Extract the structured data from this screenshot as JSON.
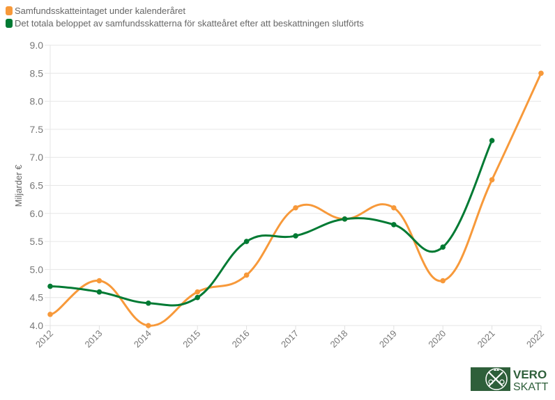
{
  "chart_data": {
    "type": "line",
    "title": "",
    "xlabel": "",
    "ylabel": "Miljarder €",
    "x": [
      "2012",
      "2013",
      "2014",
      "2015",
      "2016",
      "2017",
      "2018",
      "2019",
      "2020",
      "2021",
      "2022"
    ],
    "ylim": [
      4.0,
      9.0
    ],
    "yticks": [
      "4.0",
      "4.5",
      "5.0",
      "5.5",
      "6.0",
      "6.5",
      "7.0",
      "7.5",
      "8.0",
      "8.5",
      "9.0"
    ],
    "grid": true,
    "legend_position": "top-left",
    "series": [
      {
        "name": "Samfundsskatteintaget under kalenderåret",
        "color": "#f7993a",
        "values": [
          4.2,
          4.8,
          4.0,
          4.6,
          4.9,
          6.1,
          5.9,
          6.1,
          4.8,
          6.6,
          8.5
        ]
      },
      {
        "name": "Det totala beloppet av samfundsskatterna för skatteåret efter att beskattningen slutförts",
        "color": "#007a33",
        "values": [
          4.7,
          4.6,
          4.4,
          4.5,
          5.5,
          5.6,
          5.9,
          5.8,
          5.4,
          7.3,
          null
        ]
      }
    ]
  },
  "logo": {
    "line1": "VERO",
    "line2": "SKATT",
    "color": "#2e5f3a"
  }
}
